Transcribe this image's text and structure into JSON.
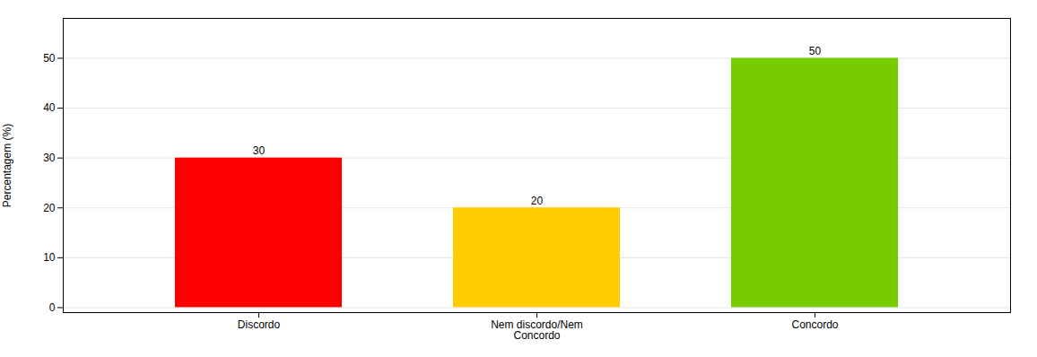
{
  "chart_data": {
    "type": "bar",
    "categories": [
      "Discordo",
      "Nem discordo/Nem\nConcordo",
      "Concordo"
    ],
    "values": [
      30,
      20,
      50
    ],
    "colors": [
      "#ff0000",
      "#ffcc00",
      "#77cc00"
    ],
    "ylabel": "Percentagem (%)",
    "ylim": [
      -1,
      58
    ],
    "yticks": [
      0,
      10,
      20,
      30,
      40,
      50
    ],
    "grid": true,
    "data_labels": true
  }
}
